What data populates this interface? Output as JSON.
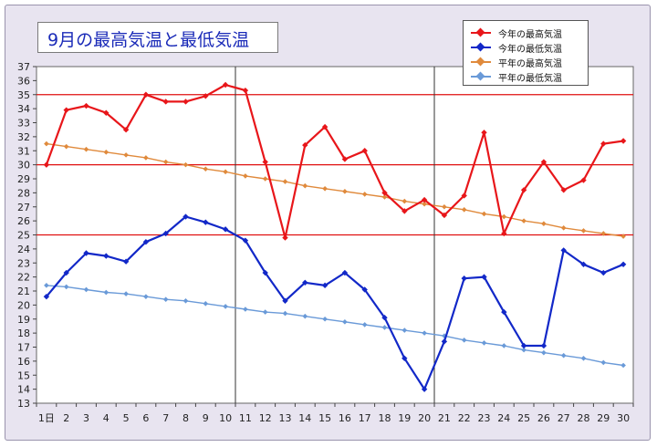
{
  "chart_data": {
    "type": "line",
    "title": "9月の最高気温と最低気温",
    "x_first_label": "1日",
    "x": [
      1,
      2,
      3,
      4,
      5,
      6,
      7,
      8,
      9,
      10,
      11,
      12,
      13,
      14,
      15,
      16,
      17,
      18,
      19,
      20,
      21,
      22,
      23,
      24,
      25,
      26,
      27,
      28,
      29,
      30
    ],
    "ylim": [
      13,
      37
    ],
    "yticks": [
      13,
      14,
      15,
      16,
      17,
      18,
      19,
      20,
      21,
      22,
      23,
      24,
      25,
      26,
      27,
      28,
      29,
      30,
      31,
      32,
      33,
      34,
      35,
      36,
      37
    ],
    "reference_lines": [
      35,
      30,
      25
    ],
    "vertical_dividers": [
      10.5,
      20.5
    ],
    "grid": "off",
    "legend_position": "top-right",
    "series": [
      {
        "name": "今年の最高気温",
        "color": "#e8161a",
        "values": [
          30.0,
          33.9,
          34.2,
          33.7,
          32.5,
          35.0,
          34.5,
          34.5,
          34.9,
          35.7,
          35.3,
          30.2,
          24.8,
          31.4,
          32.7,
          30.4,
          31.0,
          28.0,
          26.7,
          27.5,
          26.4,
          27.8,
          32.3,
          25.1,
          28.2,
          30.2,
          28.2,
          28.9,
          31.5,
          31.7
        ]
      },
      {
        "name": "今年の最低気温",
        "color": "#1228c8",
        "values": [
          20.6,
          22.3,
          23.7,
          23.5,
          23.1,
          24.5,
          25.1,
          26.3,
          25.9,
          25.4,
          24.6,
          22.3,
          20.3,
          21.6,
          21.4,
          22.3,
          21.1,
          19.1,
          16.2,
          14.0,
          17.4,
          21.9,
          22.0,
          19.5,
          17.1,
          17.1,
          23.9,
          22.9,
          22.3,
          22.9
        ]
      },
      {
        "name": "平年の最高気温",
        "color": "#e08a3c",
        "values": [
          31.5,
          31.3,
          31.1,
          30.9,
          30.7,
          30.5,
          30.2,
          30.0,
          29.7,
          29.5,
          29.2,
          29.0,
          28.8,
          28.5,
          28.3,
          28.1,
          27.9,
          27.7,
          27.4,
          27.2,
          27.0,
          26.8,
          26.5,
          26.3,
          26.0,
          25.8,
          25.5,
          25.3,
          25.1,
          24.9
        ]
      },
      {
        "name": "平年の最低気温",
        "color": "#6a9ad8",
        "values": [
          21.4,
          21.3,
          21.1,
          20.9,
          20.8,
          20.6,
          20.4,
          20.3,
          20.1,
          19.9,
          19.7,
          19.5,
          19.4,
          19.2,
          19.0,
          18.8,
          18.6,
          18.4,
          18.2,
          18.0,
          17.8,
          17.5,
          17.3,
          17.1,
          16.8,
          16.6,
          16.4,
          16.2,
          15.9,
          15.7
        ]
      }
    ]
  },
  "colors": {
    "frame_bg": "#e8e4f0",
    "plot_bg": "#ffffff",
    "reference_line": "#e01010",
    "divider": "#333333",
    "title_text": "#1a2ab8"
  }
}
